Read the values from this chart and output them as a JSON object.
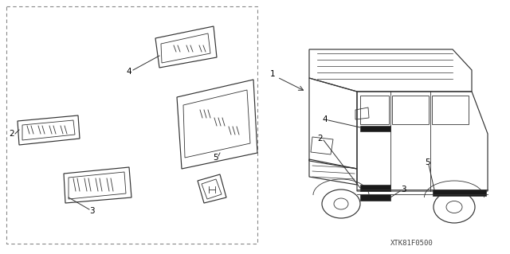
{
  "part_code": "XTK81F0500",
  "background_color": "#ffffff",
  "line_color": "#333333",
  "dark_fill": "#1a1a1a",
  "dash_border_color": "#888888"
}
